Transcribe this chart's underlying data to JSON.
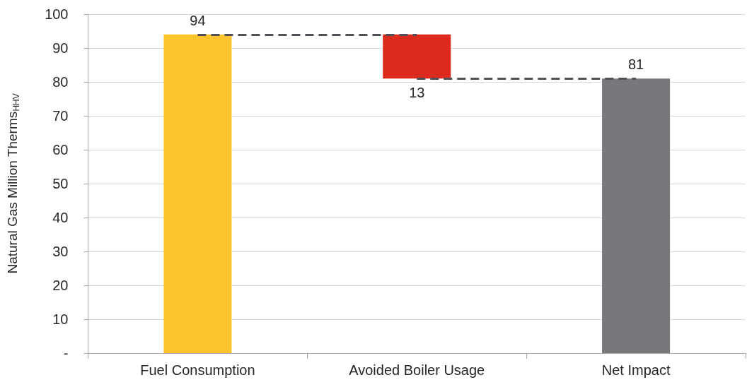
{
  "chart_data": {
    "type": "bar",
    "ylabel": "Natural Gas Million Therms$_{HHV}$",
    "categories": [
      "Fuel Consumption",
      "Avoided Boiler Usage",
      "Net Impact"
    ],
    "values": [
      94,
      13,
      81
    ],
    "base": [
      0,
      81,
      0
    ],
    "colors": [
      "#fec42d",
      "#dc2a1e",
      "#78777c"
    ],
    "ylim": [
      0,
      100
    ],
    "yticks": [
      {
        "value": 0,
        "label": "-"
      },
      10,
      20,
      30,
      40,
      50,
      60,
      70,
      80,
      90,
      100
    ],
    "grid": "y",
    "data_labels": true
  }
}
